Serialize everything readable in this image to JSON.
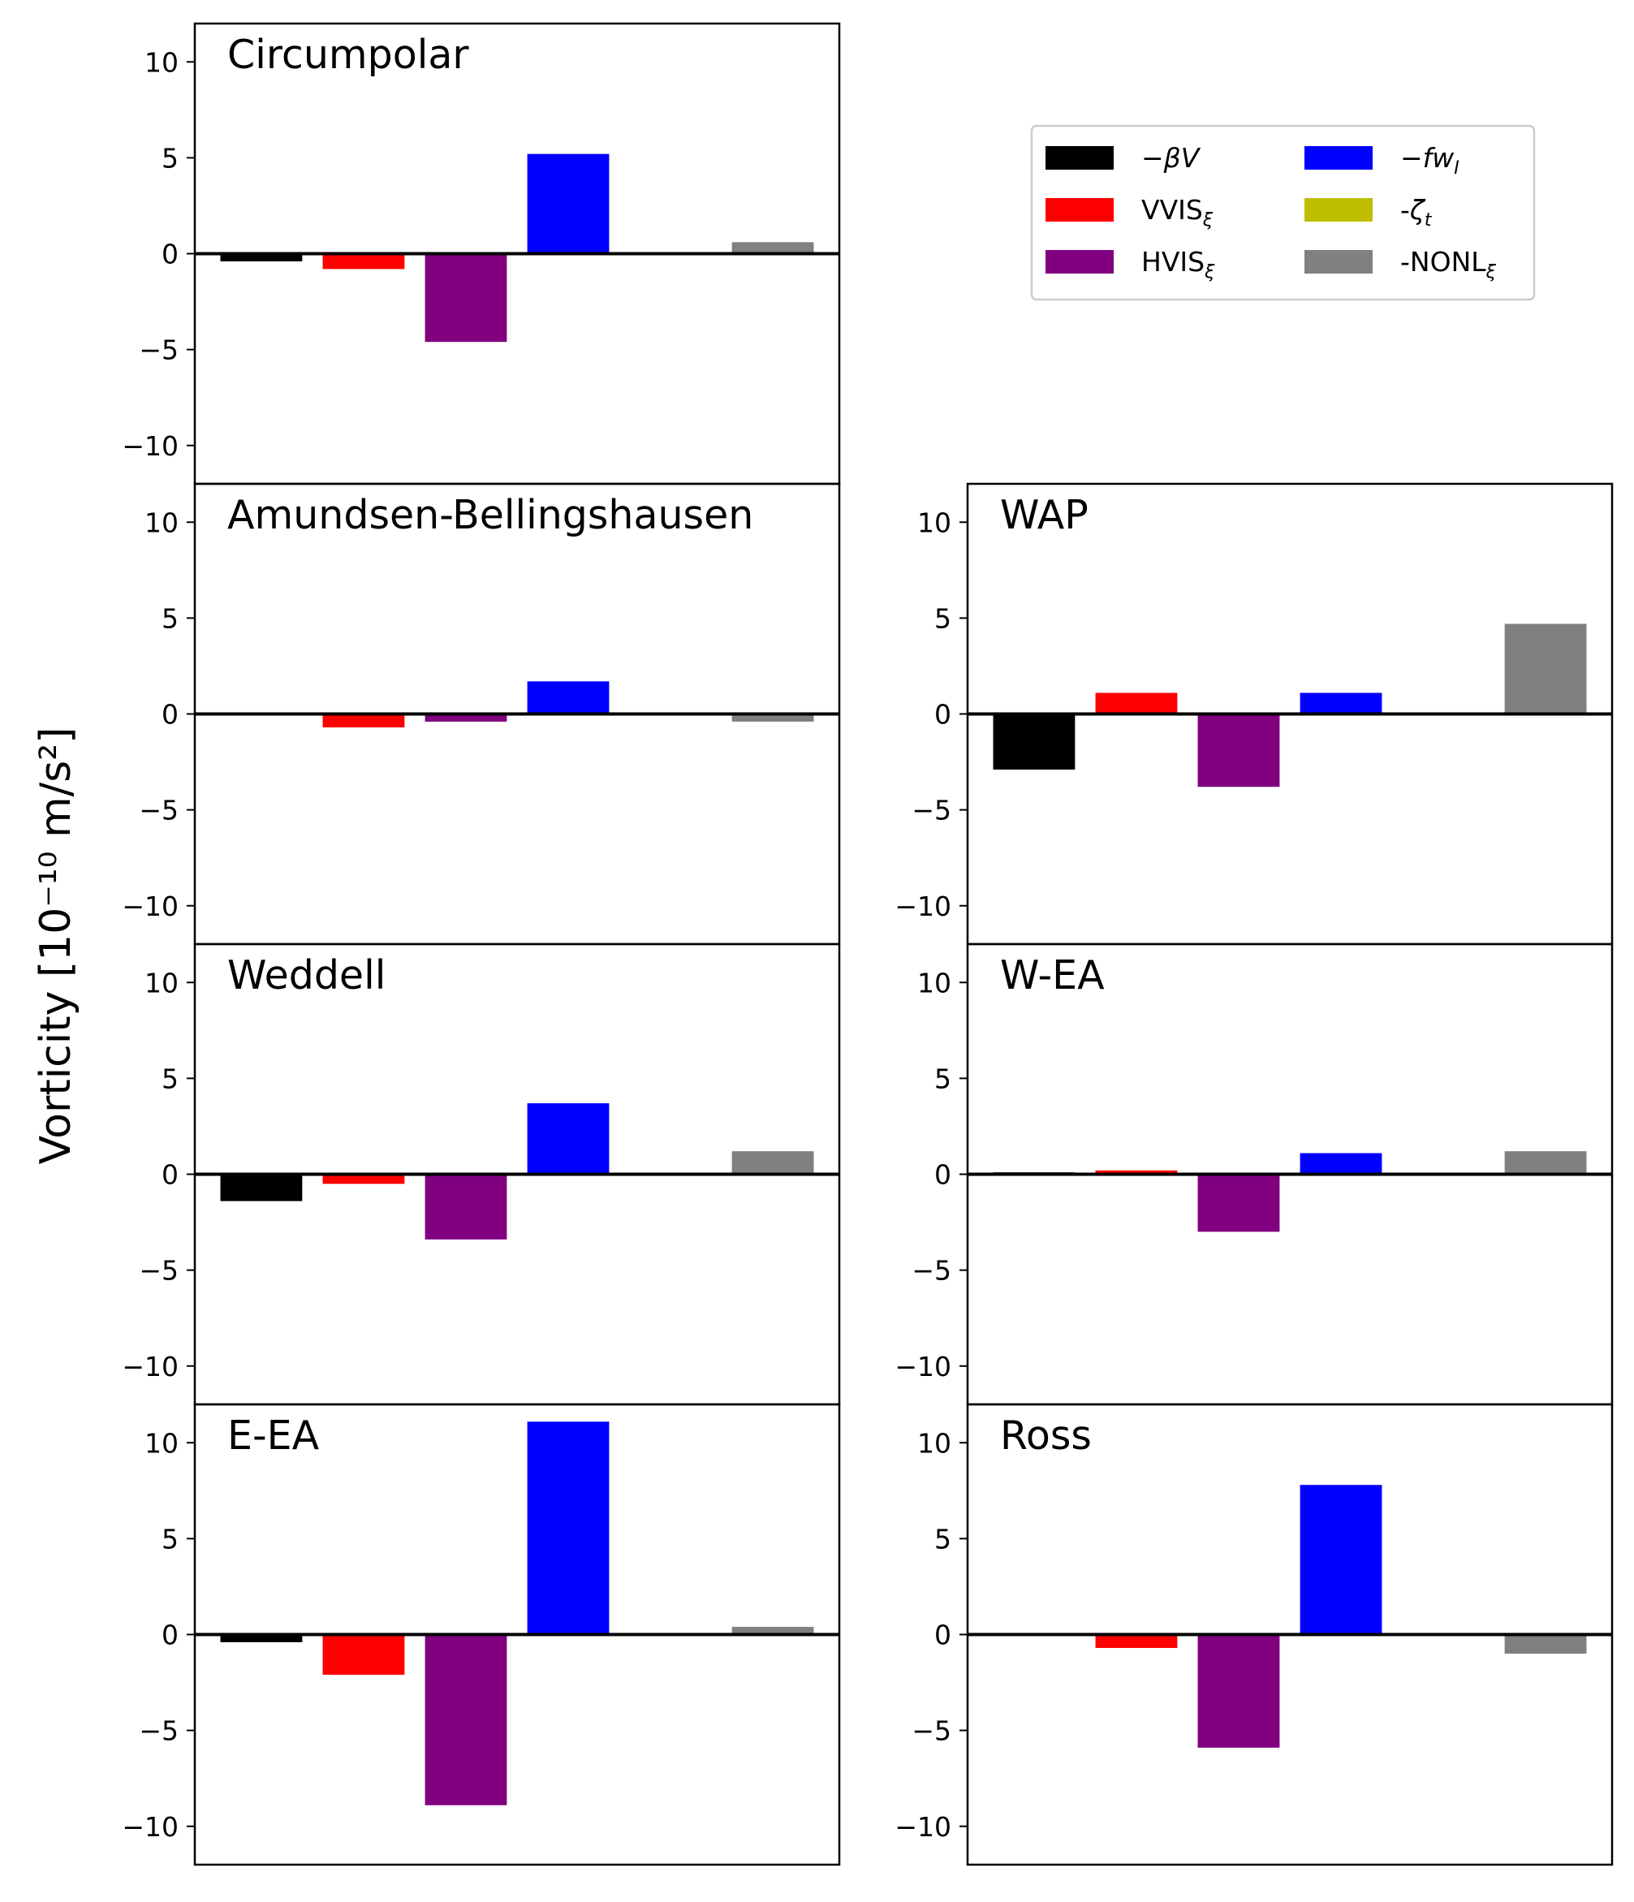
{
  "figure": {
    "ylabel": "Vorticity [10⁻¹⁰ m/s²]"
  },
  "legend": {
    "placement": "top-right",
    "entries": [
      {
        "label": "−βV",
        "color": "#000000"
      },
      {
        "label": "VVISξ",
        "color": "#ff0000"
      },
      {
        "label": "HVISξ",
        "color": "#800080"
      },
      {
        "label": "−fwI",
        "color": "#0000ff"
      },
      {
        "label": "-ζt",
        "color": "#bfbf00"
      },
      {
        "label": "-NONLξ",
        "color": "#808080"
      }
    ]
  },
  "chart_data": {
    "type": "bar",
    "ylim": [
      -12,
      12
    ],
    "yticks": [
      10,
      5,
      0,
      -5,
      -10
    ],
    "ytick_labels": [
      "10",
      "5",
      "0",
      "−5",
      "−10"
    ],
    "grid": false,
    "series_names": [
      "−βV",
      "VVISξ",
      "HVISξ",
      "−fwI",
      "-ζt",
      "-NONLξ"
    ],
    "colors": [
      "#000000",
      "#ff0000",
      "#800080",
      "#0000ff",
      "#bfbf00",
      "#808080"
    ],
    "panels": [
      {
        "title": "Circumpolar",
        "values": [
          -0.4,
          -0.8,
          -4.6,
          5.2,
          0.0,
          0.6
        ]
      },
      {
        "title": "Amundsen-Bellingshausen",
        "values": [
          0.0,
          -0.7,
          -0.4,
          1.7,
          0.0,
          -0.4
        ]
      },
      {
        "title": "WAP",
        "values": [
          -2.9,
          1.1,
          -3.8,
          1.1,
          0.0,
          4.7
        ]
      },
      {
        "title": "Weddell",
        "values": [
          -1.4,
          -0.5,
          -3.4,
          3.7,
          0.0,
          1.2
        ]
      },
      {
        "title": "W-EA",
        "values": [
          0.1,
          0.2,
          -3.0,
          1.1,
          0.0,
          1.2
        ]
      },
      {
        "title": "E-EA",
        "values": [
          -0.4,
          -2.1,
          -8.9,
          11.1,
          0.0,
          0.4
        ]
      },
      {
        "title": "Ross",
        "values": [
          0.0,
          -0.7,
          -5.9,
          7.8,
          0.0,
          -1.0
        ]
      }
    ]
  }
}
